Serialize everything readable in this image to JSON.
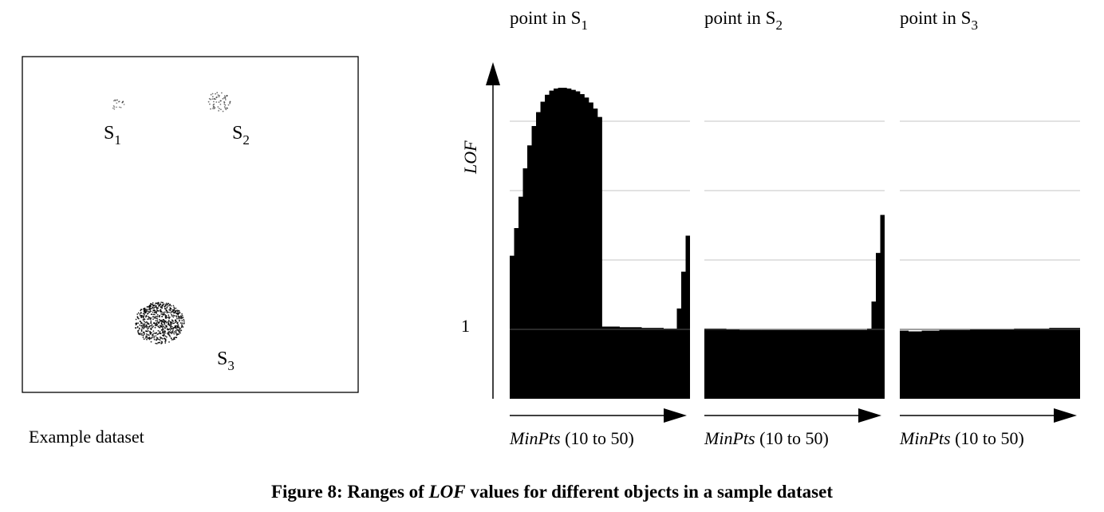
{
  "dataset_panel": {
    "label": "Example dataset",
    "clusters": [
      {
        "base": "S",
        "sub": "1"
      },
      {
        "base": "S",
        "sub": "2"
      },
      {
        "base": "S",
        "sub": "3"
      }
    ]
  },
  "lof_axis": {
    "label": "LOF",
    "tick": "1"
  },
  "caption": {
    "prefix": "Figure 8: Ranges of ",
    "emph": "LOF",
    "suffix": " values for different objects in a sample dataset"
  },
  "colors": {
    "fill": "#000000",
    "grid": "#d9d9d9",
    "frame": "#000000"
  },
  "chart_data": [
    {
      "type": "area",
      "title_base": "point in S",
      "title_sub": "1",
      "xlabel_emph": "MinPts",
      "xlabel_rest": " (10 to 50)",
      "x": [
        10,
        11,
        12,
        13,
        14,
        15,
        16,
        17,
        18,
        19,
        20,
        21,
        22,
        23,
        24,
        25,
        26,
        27,
        28,
        29,
        30,
        31,
        32,
        33,
        34,
        35,
        36,
        37,
        38,
        39,
        40,
        41,
        42,
        43,
        44,
        45,
        46,
        47,
        48,
        49,
        50
      ],
      "y": [
        2.06,
        2.46,
        2.91,
        3.32,
        3.65,
        3.93,
        4.13,
        4.28,
        4.38,
        4.44,
        4.47,
        4.48,
        4.48,
        4.47,
        4.45,
        4.43,
        4.39,
        4.34,
        4.27,
        4.18,
        4.06,
        1.04,
        1.04,
        1.04,
        1.04,
        1.03,
        1.03,
        1.03,
        1.03,
        1.03,
        1.02,
        1.02,
        1.02,
        1.02,
        1.02,
        1.01,
        1.01,
        1.01,
        1.3,
        1.83,
        2.35
      ],
      "ylim": [
        0,
        5
      ],
      "grid": true
    },
    {
      "type": "area",
      "title_base": "point in S",
      "title_sub": "2",
      "xlabel_emph": "MinPts",
      "xlabel_rest": " (10 to 50)",
      "x": [
        10,
        11,
        12,
        13,
        14,
        15,
        16,
        17,
        18,
        19,
        20,
        21,
        22,
        23,
        24,
        25,
        26,
        27,
        28,
        29,
        30,
        31,
        32,
        33,
        34,
        35,
        36,
        37,
        38,
        39,
        40,
        41,
        42,
        43,
        44,
        45,
        46,
        47,
        48,
        49,
        50
      ],
      "y": [
        1.01,
        1.01,
        1.01,
        1.01,
        1.01,
        1.0,
        1.0,
        1.0,
        0.99,
        0.99,
        0.99,
        0.99,
        0.99,
        0.99,
        0.99,
        0.99,
        0.99,
        0.99,
        0.99,
        0.99,
        0.99,
        0.99,
        0.99,
        0.99,
        0.99,
        0.99,
        0.99,
        0.99,
        0.99,
        0.99,
        0.99,
        0.99,
        0.99,
        0.99,
        0.99,
        0.99,
        0.99,
        1.01,
        1.4,
        2.1,
        2.65
      ],
      "ylim": [
        0,
        5
      ],
      "grid": true
    },
    {
      "type": "area",
      "title_base": "point in S",
      "title_sub": "3",
      "xlabel_emph": "MinPts",
      "xlabel_rest": " (10 to 50)",
      "x": [
        10,
        11,
        12,
        13,
        14,
        15,
        16,
        17,
        18,
        19,
        20,
        21,
        22,
        23,
        24,
        25,
        26,
        27,
        28,
        29,
        30,
        31,
        32,
        33,
        34,
        35,
        36,
        37,
        38,
        39,
        40,
        41,
        42,
        43,
        44,
        45,
        46,
        47,
        48,
        49,
        50
      ],
      "y": [
        0.98,
        0.98,
        0.97,
        0.97,
        0.97,
        0.98,
        0.98,
        0.98,
        0.98,
        0.99,
        0.99,
        0.99,
        0.99,
        0.99,
        0.99,
        0.99,
        1.0,
        1.0,
        1.0,
        1.0,
        1.0,
        1.0,
        1.0,
        1.0,
        1.0,
        1.0,
        1.01,
        1.01,
        1.01,
        1.01,
        1.01,
        1.01,
        1.01,
        1.01,
        1.02,
        1.02,
        1.02,
        1.02,
        1.02,
        1.02,
        1.02
      ],
      "ylim": [
        0,
        5
      ],
      "grid": true
    }
  ]
}
